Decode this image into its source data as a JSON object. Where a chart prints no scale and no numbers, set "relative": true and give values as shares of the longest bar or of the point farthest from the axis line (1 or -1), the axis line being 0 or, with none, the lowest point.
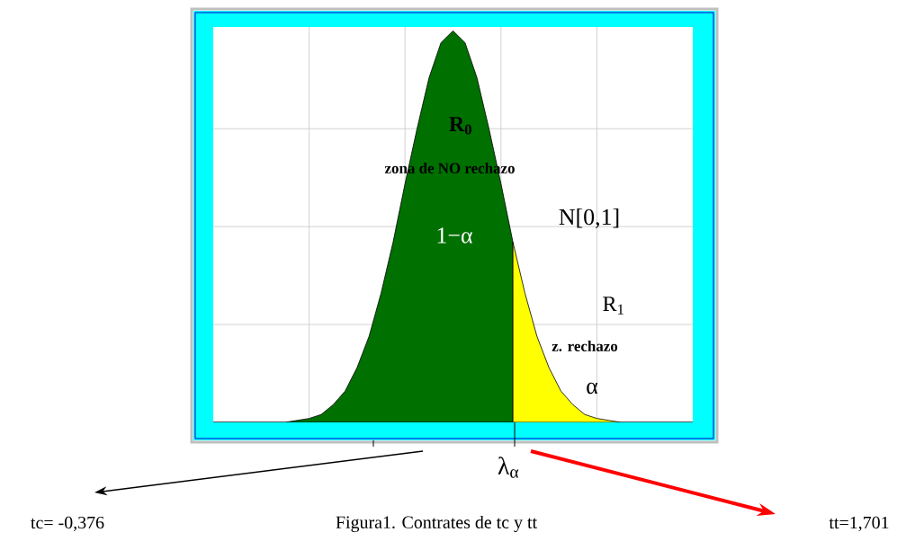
{
  "chart_data": {
    "type": "area",
    "relative": true,
    "grid": true,
    "title": "Figura1. Contrates de tc y tt",
    "categories": [
      null,
      null,
      null,
      null,
      null,
      null,
      null,
      null,
      null,
      null,
      null,
      null,
      null,
      null,
      null,
      null,
      null,
      null,
      null,
      null,
      null,
      null,
      null,
      null,
      null,
      null,
      null,
      null,
      null,
      null,
      null,
      null,
      null,
      null,
      null,
      null,
      null,
      null,
      null,
      null,
      null
    ],
    "series": [
      {
        "color": "#007000",
        "values": [
          0,
          0,
          0,
          0,
          0,
          0,
          0,
          0.005,
          0.01,
          0.02,
          0.045,
          0.08,
          0.14,
          0.22,
          0.33,
          0.46,
          0.61,
          0.75,
          0.88,
          0.97,
          1,
          0.97,
          0.88,
          0.75,
          0.61,
          0.46,
          null,
          null,
          null,
          null,
          null,
          null,
          null,
          null,
          null,
          null,
          null,
          null,
          null,
          null,
          null
        ]
      },
      {
        "color": "#ffff00",
        "values": [
          null,
          null,
          null,
          null,
          null,
          null,
          null,
          null,
          null,
          null,
          null,
          null,
          null,
          null,
          null,
          null,
          null,
          null,
          null,
          null,
          null,
          null,
          null,
          null,
          null,
          0.46,
          0.33,
          0.22,
          0.14,
          0.08,
          0.045,
          0.02,
          0.01,
          0.005,
          0,
          0,
          0,
          0,
          0,
          0,
          0
        ]
      }
    ],
    "annotations": [
      "R$_{0}$",
      "zona de NO rechazo",
      "1−α",
      "N[0,1]",
      "R$_{1}$",
      "z. rechazo",
      "α",
      "λ$_{α}$",
      "tc= -0,376",
      "tt=1,701"
    ]
  }
}
